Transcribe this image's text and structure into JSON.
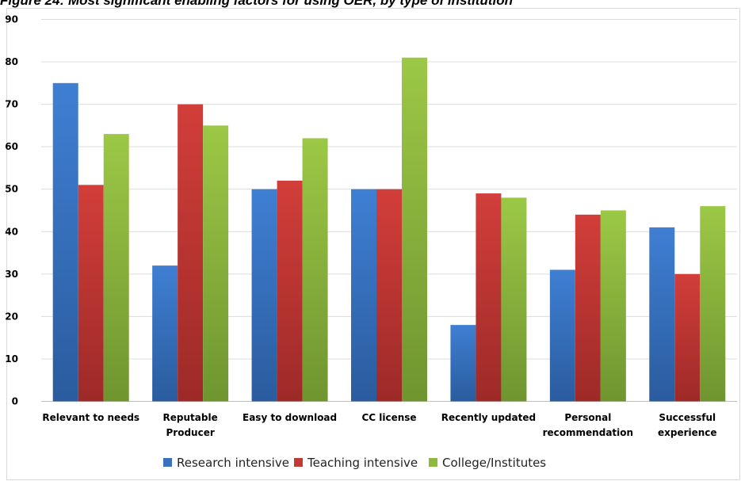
{
  "caption": "Figure 24: Most significant enabling factors for using OER, by type of institution",
  "chart_data": {
    "type": "bar",
    "title": "Figure 24: Most significant enabling factors for using OER, by type of institution",
    "xlabel": "",
    "ylabel": "",
    "ylim": [
      0,
      90
    ],
    "yticks": [
      0,
      10,
      20,
      30,
      40,
      50,
      60,
      70,
      80,
      90
    ],
    "grid": true,
    "legend_position": "bottom",
    "categories": [
      [
        "Relevant to needs"
      ],
      [
        "Reputable",
        "Producer"
      ],
      [
        "Easy to download"
      ],
      [
        "CC license"
      ],
      [
        "Recently updated"
      ],
      [
        "Personal",
        "recommendation"
      ],
      [
        "Successful",
        "experience"
      ]
    ],
    "series": [
      {
        "name": "Research intensive",
        "color": "#3b72c0",
        "values": [
          75,
          32,
          50,
          50,
          18,
          31,
          41
        ]
      },
      {
        "name": "Teaching intensive",
        "color": "#c23a37",
        "values": [
          51,
          70,
          52,
          50,
          49,
          44,
          30
        ]
      },
      {
        "name": "College/Institutes",
        "color": "#8fb83f",
        "values": [
          63,
          65,
          62,
          81,
          48,
          45,
          46
        ]
      }
    ]
  }
}
